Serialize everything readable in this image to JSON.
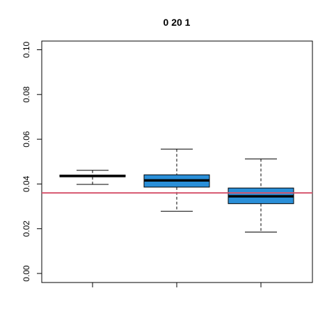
{
  "chart_data": {
    "type": "box",
    "title": "0 20 1",
    "xlabel": "",
    "ylabel": "",
    "ylim": [
      0,
      0.1
    ],
    "y_ticks": [
      "0.00",
      "0.02",
      "0.04",
      "0.06",
      "0.08",
      "0.10"
    ],
    "y_tick_values": [
      0,
      0.02,
      0.04,
      0.06,
      0.08,
      0.1
    ],
    "x_ticks": [
      1,
      2,
      3
    ],
    "x_tick_labels": [
      "",
      "",
      ""
    ],
    "reference_line": {
      "y": 0.036,
      "color": "#d6526b"
    },
    "boxes": [
      {
        "position": 1,
        "whisker_low": 0.0398,
        "q1": 0.0432,
        "median": 0.0436,
        "q3": 0.044,
        "whisker_high": 0.0461,
        "fill": "#2a8fd8"
      },
      {
        "position": 2,
        "whisker_low": 0.0278,
        "q1": 0.0386,
        "median": 0.0416,
        "q3": 0.0441,
        "whisker_high": 0.0556,
        "fill": "#2a8fd8"
      },
      {
        "position": 3,
        "whisker_low": 0.0185,
        "q1": 0.0312,
        "median": 0.0345,
        "q3": 0.0382,
        "whisker_high": 0.0512,
        "fill": "#2a8fd8"
      }
    ],
    "grid": false,
    "legend": "none"
  }
}
